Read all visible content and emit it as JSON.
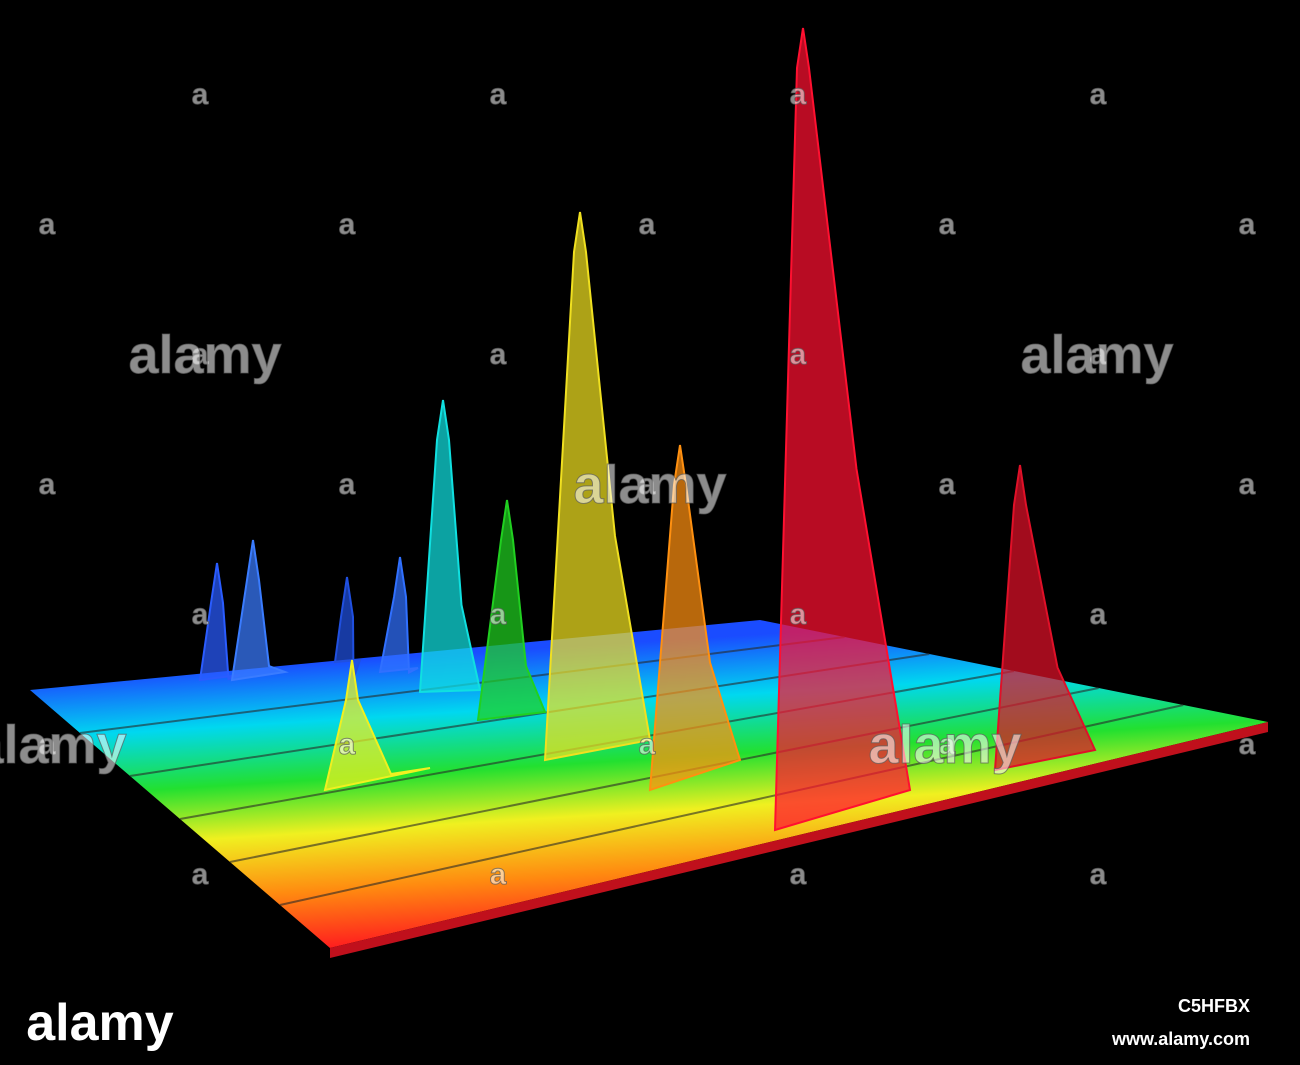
{
  "watermark": {
    "logo": "alamy",
    "mark": "a"
  },
  "footer": {
    "logo": "alamy",
    "image_id": "C5HFBX",
    "url": "www.alamy.com"
  }
}
